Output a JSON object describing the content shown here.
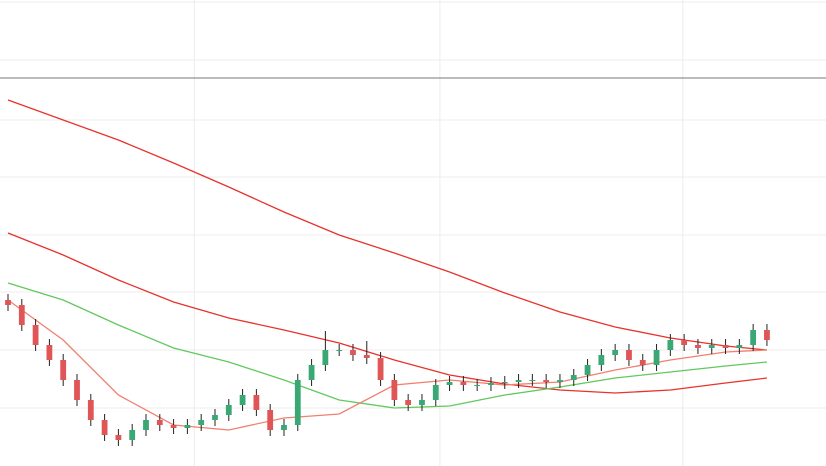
{
  "chart_data": {
    "type": "candlestick",
    "xlim": [
      -0.58,
      59.28
    ],
    "ylim": [
      0,
      466
    ],
    "xticks": [
      13.5,
      31.3,
      48.9
    ],
    "yticks": [
      58,
      116,
      174,
      231,
      289,
      346,
      406,
      464
    ],
    "grid": true,
    "grid_color": "#ececec",
    "price_line": 388,
    "price_line_color": "#777777",
    "up_color": "#3aa874",
    "down_color": "#e05555",
    "wick_color": "#222222",
    "open": [
      166,
      161,
      141,
      121,
      106,
      86,
      66,
      46,
      31,
      26,
      36,
      46,
      41,
      38,
      41,
      46,
      51,
      61,
      71,
      56,
      36,
      41,
      86,
      101,
      116,
      116,
      111,
      108,
      86,
      66,
      61,
      66,
      81,
      84,
      81,
      81,
      83,
      84,
      86,
      86,
      84,
      86,
      91,
      101,
      111,
      116,
      106,
      101,
      116,
      126,
      121,
      118,
      121,
      118,
      121,
      136
    ],
    "high": [
      172,
      167,
      147,
      127,
      112,
      92,
      72,
      52,
      37,
      42,
      52,
      52,
      47,
      47,
      52,
      57,
      67,
      77,
      77,
      62,
      47,
      92,
      107,
      135,
      122,
      122,
      125,
      114,
      92,
      72,
      72,
      87,
      90,
      90,
      87,
      89,
      90,
      92,
      92,
      92,
      92,
      97,
      107,
      117,
      122,
      122,
      112,
      122,
      132,
      132,
      127,
      127,
      127,
      127,
      142,
      142
    ],
    "low": [
      155,
      135,
      115,
      100,
      80,
      60,
      40,
      25,
      20,
      20,
      30,
      35,
      32,
      32,
      35,
      40,
      45,
      55,
      50,
      30,
      30,
      35,
      80,
      95,
      110,
      105,
      102,
      80,
      60,
      55,
      55,
      60,
      75,
      75,
      75,
      75,
      77,
      78,
      80,
      78,
      78,
      80,
      85,
      95,
      105,
      100,
      95,
      95,
      110,
      115,
      112,
      112,
      112,
      112,
      115,
      120
    ],
    "close": [
      161,
      141,
      121,
      106,
      86,
      66,
      46,
      31,
      26,
      36,
      46,
      41,
      38,
      41,
      46,
      51,
      61,
      71,
      56,
      36,
      41,
      86,
      101,
      116,
      116,
      111,
      108,
      86,
      66,
      61,
      66,
      81,
      84,
      81,
      81,
      83,
      84,
      86,
      86,
      84,
      86,
      91,
      101,
      111,
      116,
      106,
      101,
      116,
      126,
      121,
      118,
      121,
      118,
      121,
      136,
      126
    ],
    "series": [
      {
        "color": "#e8322c",
        "x": [
          0,
          4,
          8,
          12,
          16,
          20,
          24,
          28,
          32,
          36,
          40,
          44,
          48,
          52,
          55
        ],
        "values": [
          366,
          346,
          326,
          303,
          279,
          254,
          231,
          213,
          194,
          173,
          154,
          139,
          128,
          120,
          116
        ]
      },
      {
        "color": "#e8322c",
        "x": [
          0,
          4,
          8,
          12,
          16,
          20,
          24,
          28,
          32,
          36,
          40,
          44,
          48,
          52,
          55
        ],
        "values": [
          233,
          211,
          186,
          164,
          148,
          136,
          123,
          106,
          91,
          82,
          76,
          73,
          76,
          83,
          88
        ]
      },
      {
        "color": "#62c85e",
        "x": [
          0,
          4,
          8,
          12,
          16,
          20,
          24,
          28,
          32,
          36,
          40,
          44,
          48,
          52,
          55
        ],
        "values": [
          183,
          166,
          141,
          118,
          104,
          86,
          66,
          58,
          60,
          71,
          79,
          88,
          94,
          100,
          104
        ]
      },
      {
        "color": "#f08070",
        "x": [
          0,
          4,
          8,
          12,
          16,
          20,
          24,
          28,
          32,
          36,
          40,
          44,
          48,
          52,
          55
        ],
        "values": [
          166,
          126,
          71,
          41,
          36,
          48,
          52,
          81,
          86,
          81,
          84,
          96,
          106,
          114,
          116
        ]
      }
    ]
  }
}
